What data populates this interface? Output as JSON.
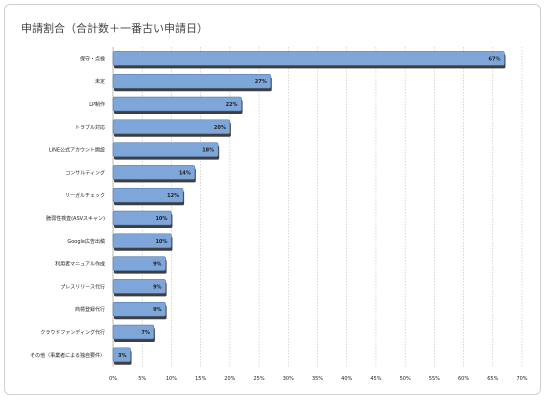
{
  "chart_data": {
    "type": "bar",
    "orientation": "horizontal",
    "title": "申請割合（合計数＋一番古い申請日）",
    "categories": [
      "保守・点検",
      "未定",
      "LP制作",
      "トラブル対応",
      "LINE公式アカウント開設",
      "コンサルティング",
      "リーガルチェック",
      "脆弱性検査(ASVスキャン)",
      "Google広告出稿",
      "利用者マニュアル作成",
      "プレスリリース代行",
      "商標登録代行",
      "クラウドファンディング代行",
      "その他（事業者による独自要件）"
    ],
    "values": [
      67,
      27,
      22,
      20,
      18,
      14,
      12,
      10,
      10,
      9,
      9,
      9,
      7,
      3
    ],
    "value_labels": [
      "67%",
      "27%",
      "22%",
      "20%",
      "18%",
      "14%",
      "12%",
      "10%",
      "10%",
      "9%",
      "9%",
      "9%",
      "7%",
      "3%"
    ],
    "x_ticks": [
      "0%",
      "5%",
      "10%",
      "15%",
      "20%",
      "25%",
      "30%",
      "35%",
      "40%",
      "45%",
      "50%",
      "55%",
      "60%",
      "65%",
      "70%"
    ],
    "xlim": [
      0,
      70
    ],
    "grid": true,
    "legend": "none",
    "colors": {
      "bar": "#7ea6d9",
      "bar_edge": "#4a6f9f",
      "bar_shadow": "#3e3e3e",
      "grid": "#bcbcbc"
    }
  }
}
